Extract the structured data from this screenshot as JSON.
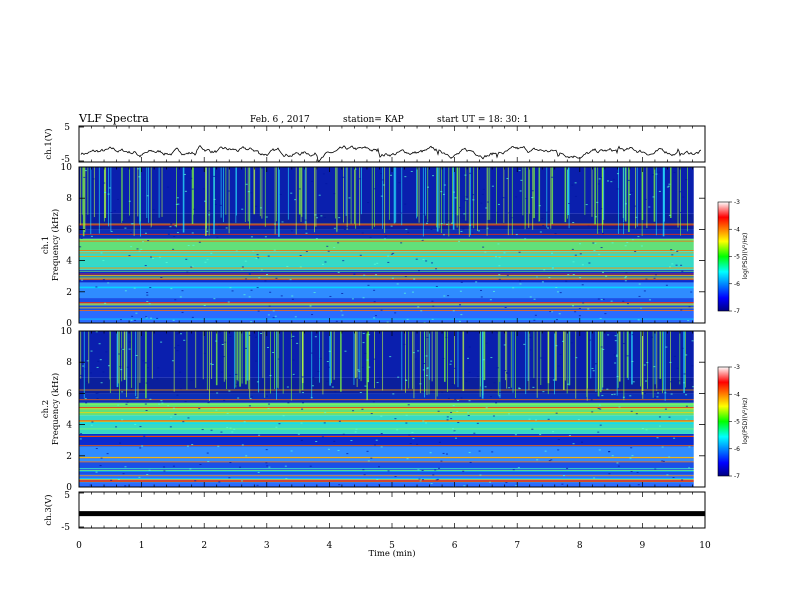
{
  "header": {
    "title": "VLF Spectra",
    "date": "Feb. 6 , 2017",
    "station": "station= KAP",
    "start": "start UT = 18: 30: 1"
  },
  "chart_data": [
    {
      "type": "line",
      "name": "ch1-waveform",
      "ylabel": "ch.1(V)",
      "ylim": [
        -5,
        5
      ],
      "yticks": [
        "5",
        "-5"
      ],
      "xlim": [
        0,
        10
      ],
      "note": "waveform trace around -2.5 V"
    },
    {
      "type": "heatmap",
      "name": "ch1-spectrogram",
      "ylabel_line1": "ch.1",
      "ylabel_line2": "Frequency (kHz)",
      "ylim": [
        0,
        10
      ],
      "yticks": [
        "0",
        "2",
        "4",
        "6",
        "8",
        "10"
      ],
      "xlim": [
        0,
        10
      ],
      "colorbar": {
        "label": "log(PSD)(V²/Hz)",
        "range": [
          -7,
          -3
        ],
        "ticks": [
          "-3",
          "-4",
          "-5",
          "-6",
          "-7"
        ]
      }
    },
    {
      "type": "heatmap",
      "name": "ch2-spectrogram",
      "ylabel_line1": "ch.2",
      "ylabel_line2": "Frequency (kHz)",
      "ylim": [
        0,
        10
      ],
      "yticks": [
        "0",
        "2",
        "4",
        "6",
        "8",
        "10"
      ],
      "xlim": [
        0,
        10
      ],
      "colorbar": {
        "label": "log(PSD)(V²/Hz)",
        "range": [
          -7,
          -3
        ],
        "ticks": [
          "-3",
          "-4",
          "-5",
          "-6",
          "-7"
        ]
      }
    },
    {
      "type": "line",
      "name": "ch3-waveform",
      "ylabel": "ch.3(V)",
      "ylim": [
        -5,
        5
      ],
      "yticks": [
        "5",
        "-5"
      ],
      "xlim": [
        0,
        10
      ],
      "level": -1
    }
  ],
  "xaxis": {
    "label": "Time (min)",
    "ticks": [
      "0",
      "1",
      "2",
      "3",
      "4",
      "5",
      "6",
      "7",
      "8",
      "9",
      "10"
    ]
  }
}
